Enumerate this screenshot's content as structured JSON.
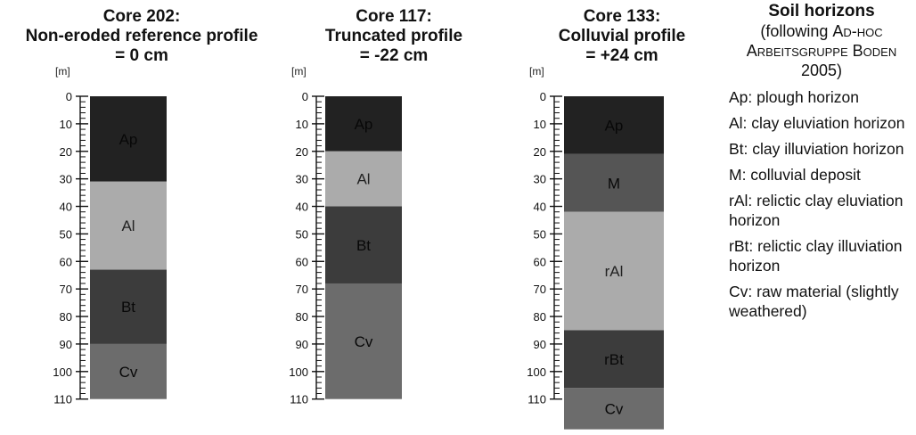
{
  "depth_unit": "[m]",
  "depth_ticks": [
    "0",
    "10",
    "20",
    "30",
    "40",
    "50",
    "60",
    "70",
    "80",
    "90",
    "100",
    "110"
  ],
  "cores": [
    {
      "title_lines": [
        "Core 202:",
        "Non-eroded reference profile",
        "= 0 cm"
      ],
      "layers": [
        {
          "label": "Ap",
          "top": 0,
          "bottom": 31,
          "color": "#222222"
        },
        {
          "label": "Al",
          "top": 31,
          "bottom": 63,
          "color": "#ababab"
        },
        {
          "label": "Bt",
          "top": 63,
          "bottom": 90,
          "color": "#3c3c3c"
        },
        {
          "label": "Cv",
          "top": 90,
          "bottom": 110,
          "color": "#6c6c6c"
        }
      ]
    },
    {
      "title_lines": [
        "Core 117:",
        "Truncated profile",
        "= -22 cm"
      ],
      "layers": [
        {
          "label": "Ap",
          "top": 0,
          "bottom": 20,
          "color": "#222222"
        },
        {
          "label": "Al",
          "top": 20,
          "bottom": 40,
          "color": "#ababab"
        },
        {
          "label": "Bt",
          "top": 40,
          "bottom": 68,
          "color": "#3c3c3c"
        },
        {
          "label": "Cv",
          "top": 68,
          "bottom": 110,
          "color": "#6c6c6c"
        }
      ]
    },
    {
      "title_lines": [
        "Core  133:",
        "Colluvial profile",
        "= +24 cm"
      ],
      "layers": [
        {
          "label": "Ap",
          "top": 0,
          "bottom": 21,
          "color": "#222222"
        },
        {
          "label": "M",
          "top": 21,
          "bottom": 42,
          "color": "#555555"
        },
        {
          "label": "rAl",
          "top": 42,
          "bottom": 85,
          "color": "#ababab"
        },
        {
          "label": "rBt",
          "top": 85,
          "bottom": 106,
          "color": "#3c3c3c"
        },
        {
          "label": "Cv",
          "top": 106,
          "bottom": 121,
          "color": "#6c6c6c"
        }
      ]
    }
  ],
  "legend": {
    "title": "Soil horizons",
    "subtitle_prefix": "(following ",
    "subtitle_smallcaps": "Ad-hoc Arbeitsgruppe Boden",
    "subtitle_suffix": " 2005)",
    "items": [
      "Ap: plough horizon",
      "Al: clay eluviation horizon",
      "Bt: clay illuviation horizon",
      "M: colluvial deposit",
      "rAl: relictic clay eluviation horizon",
      "rBt: relictic clay illuviation horizon",
      "Cv: raw material (slightly weathered)"
    ]
  }
}
